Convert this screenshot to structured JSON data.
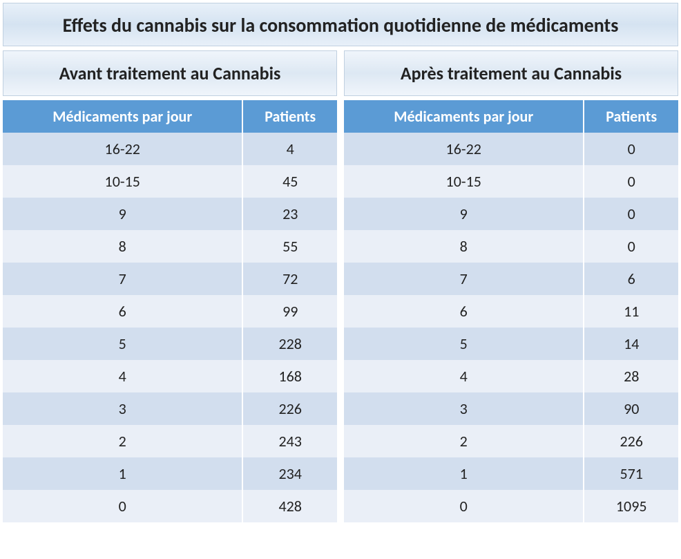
{
  "title": "Effets du cannabis sur la consommation quotidienne de médicaments",
  "before": {
    "header": "Avant traitement au Cannabis",
    "columns": [
      "Médicaments par jour",
      "Patients"
    ],
    "rows": [
      [
        "16-22",
        "4"
      ],
      [
        "10-15",
        "45"
      ],
      [
        "9",
        "23"
      ],
      [
        "8",
        "55"
      ],
      [
        "7",
        "72"
      ],
      [
        "6",
        "99"
      ],
      [
        "5",
        "228"
      ],
      [
        "4",
        "168"
      ],
      [
        "3",
        "226"
      ],
      [
        "2",
        "243"
      ],
      [
        "1",
        "234"
      ],
      [
        "0",
        "428"
      ]
    ]
  },
  "after": {
    "header": "Après traitement au Cannabis",
    "columns": [
      "Médicaments par jour",
      "Patients"
    ],
    "rows": [
      [
        "16-22",
        "0"
      ],
      [
        "10-15",
        "0"
      ],
      [
        "9",
        "0"
      ],
      [
        "8",
        "0"
      ],
      [
        "7",
        "6"
      ],
      [
        "6",
        "11"
      ],
      [
        "5",
        "14"
      ],
      [
        "4",
        "28"
      ],
      [
        "3",
        "90"
      ],
      [
        "2",
        "226"
      ],
      [
        "1",
        "571"
      ],
      [
        "0",
        "1095"
      ]
    ]
  },
  "styling": {
    "header_bg": "#5b9bd5",
    "header_text": "#ffffff",
    "row_odd_bg": "#d2deee",
    "row_even_bg": "#eaeff7",
    "title_gradient_top": "#e8f0f9",
    "title_gradient_mid": "#d5e3f1",
    "font_family": "Calibri",
    "title_fontsize": 28,
    "section_fontsize": 26,
    "cell_fontsize": 22
  }
}
